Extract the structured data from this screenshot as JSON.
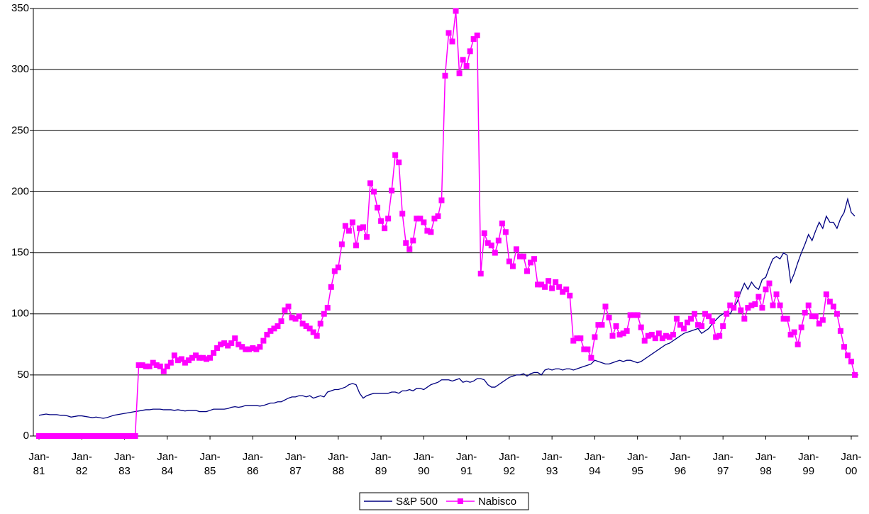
{
  "chart_data": {
    "type": "line",
    "categories": [
      "Jan-81",
      null,
      null,
      null,
      null,
      null,
      null,
      null,
      null,
      null,
      null,
      null,
      "Jan-82",
      null,
      null,
      null,
      null,
      null,
      null,
      null,
      null,
      null,
      null,
      null,
      "Jan-83",
      null,
      null,
      null,
      null,
      null,
      null,
      null,
      null,
      null,
      null,
      null,
      "Jan-84",
      null,
      null,
      null,
      null,
      null,
      null,
      null,
      null,
      null,
      null,
      null,
      "Jan-85",
      null,
      null,
      null,
      null,
      null,
      null,
      null,
      null,
      null,
      null,
      null,
      "Jan-86",
      null,
      null,
      null,
      null,
      null,
      null,
      null,
      null,
      null,
      null,
      null,
      "Jan-87",
      null,
      null,
      null,
      null,
      null,
      null,
      null,
      null,
      null,
      null,
      null,
      "Jan-88",
      null,
      null,
      null,
      null,
      null,
      null,
      null,
      null,
      null,
      null,
      null,
      "Jan-89",
      null,
      null,
      null,
      null,
      null,
      null,
      null,
      null,
      null,
      null,
      null,
      "Jan-90",
      null,
      null,
      null,
      null,
      null,
      null,
      null,
      null,
      null,
      null,
      null,
      "Jan-91",
      null,
      null,
      null,
      null,
      null,
      null,
      null,
      null,
      null,
      null,
      null,
      "Jan-92",
      null,
      null,
      null,
      null,
      null,
      null,
      null,
      null,
      null,
      null,
      null,
      "Jan-93",
      null,
      null,
      null,
      null,
      null,
      null,
      null,
      null,
      null,
      null,
      null,
      "Jan-94",
      null,
      null,
      null,
      null,
      null,
      null,
      null,
      null,
      null,
      null,
      null,
      "Jan-95",
      null,
      null,
      null,
      null,
      null,
      null,
      null,
      null,
      null,
      null,
      null,
      "Jan-96",
      null,
      null,
      null,
      null,
      null,
      null,
      null,
      null,
      null,
      null,
      null,
      "Jan-97",
      null,
      null,
      null,
      null,
      null,
      null,
      null,
      null,
      null,
      null,
      null,
      "Jan-98",
      null,
      null,
      null,
      null,
      null,
      null,
      null,
      null,
      null,
      null,
      null,
      "Jan-99",
      null,
      null,
      null,
      null,
      null,
      null,
      null,
      null,
      null,
      null,
      null,
      "Jan-00",
      null
    ],
    "series": [
      {
        "name": "S&P 500",
        "color": "#000080",
        "marker": "none",
        "values": [
          17,
          17.5,
          18,
          17.5,
          17.5,
          17.5,
          17,
          17,
          16.5,
          15.5,
          16,
          16.5,
          16.5,
          16,
          15.5,
          15,
          15.5,
          15,
          14.5,
          15,
          16,
          17,
          17.5,
          18,
          18.5,
          19,
          19.5,
          20,
          20.5,
          21,
          21.5,
          21.5,
          22,
          22,
          22,
          21.5,
          21.5,
          21.5,
          21,
          21.5,
          21,
          20.5,
          21,
          21,
          21,
          20,
          20,
          20,
          21,
          22,
          22,
          22,
          22,
          22.5,
          23.5,
          24,
          23.5,
          24,
          25,
          25,
          25,
          25,
          24.5,
          25,
          26,
          27,
          27,
          28,
          28,
          29.5,
          31,
          32,
          32,
          33,
          33,
          32,
          33,
          31,
          32,
          33,
          32,
          36,
          37,
          38,
          38,
          39,
          40,
          42,
          43,
          42,
          35,
          31,
          33,
          34,
          35,
          35,
          35,
          35,
          35,
          36,
          36,
          35,
          37,
          37,
          38,
          37,
          39,
          39,
          38,
          40,
          42,
          43,
          44,
          46,
          46,
          46,
          45,
          46,
          47,
          44,
          45,
          44,
          45,
          47,
          47,
          46,
          42,
          40,
          40,
          42,
          44,
          46,
          48,
          49,
          50,
          50,
          51,
          49,
          51,
          52,
          52,
          50,
          54,
          55,
          54,
          55,
          55,
          54,
          55,
          55,
          54,
          55,
          56,
          57,
          58,
          59,
          62,
          61,
          60,
          59,
          59,
          60,
          61,
          62,
          61,
          62,
          62,
          61,
          60,
          61,
          63,
          65,
          67,
          69,
          71,
          73,
          75,
          76,
          78,
          80,
          82,
          84,
          85,
          86,
          87,
          88,
          84,
          86,
          88,
          92,
          95,
          98,
          100,
          102,
          100,
          105,
          110,
          118,
          125,
          120,
          126,
          122,
          120,
          128,
          130,
          138,
          145,
          147,
          145,
          150,
          148,
          126,
          133,
          142,
          150,
          157,
          165,
          160,
          168,
          175,
          170,
          180,
          175,
          175,
          170,
          178,
          183,
          194,
          183,
          180
        ]
      },
      {
        "name": "Nabisco",
        "color": "#ff00ff",
        "marker": "square",
        "values": [
          0,
          0,
          0,
          0,
          0,
          0,
          0,
          0,
          0,
          0,
          0,
          0,
          0,
          0,
          0,
          0,
          0,
          0,
          0,
          0,
          0,
          0,
          0,
          0,
          0,
          0,
          0,
          0,
          58,
          58,
          57,
          57,
          60,
          58,
          57,
          53,
          57,
          60,
          66,
          62,
          63,
          60,
          62,
          64,
          66,
          64,
          64,
          63,
          64,
          68,
          72,
          75,
          76,
          74,
          76,
          80,
          75,
          73,
          71,
          71,
          72,
          71,
          73,
          78,
          83,
          86,
          88,
          90,
          94,
          103,
          106,
          97,
          96,
          98,
          92,
          90,
          88,
          85,
          82,
          92,
          100,
          105,
          122,
          135,
          138,
          157,
          172,
          168,
          175,
          156,
          170,
          171,
          163,
          207,
          200,
          187,
          176,
          170,
          178,
          201,
          230,
          224,
          182,
          158,
          153,
          160,
          178,
          178,
          175,
          168,
          167,
          178,
          180,
          193,
          295,
          330,
          323,
          348,
          297,
          308,
          303,
          315,
          325,
          328,
          133,
          166,
          158,
          156,
          150,
          160,
          174,
          167,
          143,
          139,
          153,
          147,
          147,
          135,
          142,
          145,
          124,
          124,
          122,
          127,
          121,
          126,
          122,
          118,
          120,
          115,
          78,
          80,
          80,
          71,
          71,
          64,
          81,
          91,
          91,
          106,
          97,
          82,
          90,
          83,
          84,
          86,
          99,
          99,
          99,
          89,
          78,
          82,
          83,
          80,
          84,
          80,
          82,
          81,
          83,
          96,
          91,
          88,
          93,
          96,
          100,
          91,
          90,
          100,
          98,
          94,
          81,
          82,
          90,
          100,
          107,
          105,
          116,
          103,
          96,
          105,
          107,
          108,
          114,
          105,
          120,
          125,
          107,
          116,
          107,
          96,
          96,
          83,
          85,
          75,
          89,
          101,
          107,
          98,
          98,
          92,
          95,
          116,
          110,
          106,
          100,
          86,
          73,
          66,
          61,
          50
        ]
      }
    ],
    "ylim": [
      0,
      350
    ],
    "yticks": [
      0,
      50,
      100,
      150,
      200,
      250,
      300,
      350
    ],
    "grid": true,
    "legend": "bottom"
  }
}
